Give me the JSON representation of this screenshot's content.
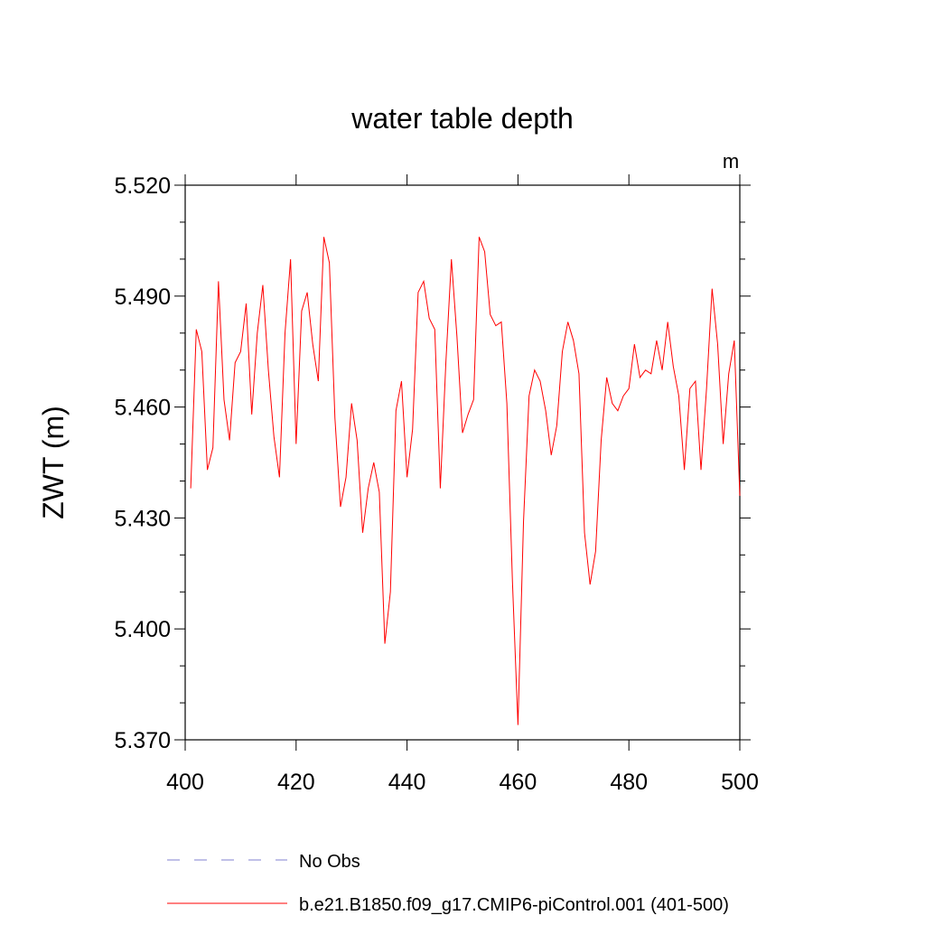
{
  "chart_data": {
    "type": "line",
    "title": "water table depth",
    "units_label": "m",
    "ylabel": "ZWT  (m)",
    "xlabel": "",
    "xlim": [
      400,
      500
    ],
    "ylim": [
      5.37,
      5.52
    ],
    "x_ticks": [
      "400",
      "420",
      "440",
      "460",
      "480",
      "500"
    ],
    "y_ticks": [
      "5.370",
      "5.400",
      "5.430",
      "5.460",
      "5.490",
      "5.520"
    ],
    "grid": false,
    "legend_position": "bottom",
    "series": [
      {
        "name": "No Obs",
        "style": "dashed",
        "color": "#8080d0",
        "x": [],
        "y": []
      },
      {
        "name": "b.e21.B1850.f09_g17.CMIP6-piControl.001 (401-500)",
        "style": "solid",
        "color": "#ff0000",
        "x": [
          401,
          402,
          403,
          404,
          405,
          406,
          407,
          408,
          409,
          410,
          411,
          412,
          413,
          414,
          415,
          416,
          417,
          418,
          419,
          420,
          421,
          422,
          423,
          424,
          425,
          426,
          427,
          428,
          429,
          430,
          431,
          432,
          433,
          434,
          435,
          436,
          437,
          438,
          439,
          440,
          441,
          442,
          443,
          444,
          445,
          446,
          447,
          448,
          449,
          450,
          451,
          452,
          453,
          454,
          455,
          456,
          457,
          458,
          459,
          460,
          461,
          462,
          463,
          464,
          465,
          466,
          467,
          468,
          469,
          470,
          471,
          472,
          473,
          474,
          475,
          476,
          477,
          478,
          479,
          480,
          481,
          482,
          483,
          484,
          485,
          486,
          487,
          488,
          489,
          490,
          491,
          492,
          493,
          494,
          495,
          496,
          497,
          498,
          499,
          500
        ],
        "y": [
          5.438,
          5.481,
          5.475,
          5.443,
          5.449,
          5.494,
          5.462,
          5.451,
          5.472,
          5.475,
          5.488,
          5.458,
          5.48,
          5.493,
          5.47,
          5.452,
          5.441,
          5.48,
          5.5,
          5.45,
          5.486,
          5.491,
          5.477,
          5.467,
          5.506,
          5.499,
          5.457,
          5.433,
          5.441,
          5.461,
          5.451,
          5.426,
          5.438,
          5.445,
          5.437,
          5.396,
          5.41,
          5.459,
          5.467,
          5.441,
          5.454,
          5.491,
          5.494,
          5.484,
          5.481,
          5.438,
          5.472,
          5.5,
          5.479,
          5.453,
          5.458,
          5.462,
          5.506,
          5.502,
          5.485,
          5.482,
          5.483,
          5.461,
          5.413,
          5.374,
          5.429,
          5.463,
          5.47,
          5.467,
          5.459,
          5.447,
          5.455,
          5.475,
          5.483,
          5.478,
          5.469,
          5.426,
          5.412,
          5.421,
          5.451,
          5.468,
          5.461,
          5.459,
          5.463,
          5.465,
          5.477,
          5.468,
          5.47,
          5.469,
          5.478,
          5.47,
          5.483,
          5.471,
          5.463,
          5.443,
          5.465,
          5.467,
          5.443,
          5.465,
          5.492,
          5.477,
          5.45,
          5.469,
          5.478,
          5.436
        ]
      }
    ]
  }
}
